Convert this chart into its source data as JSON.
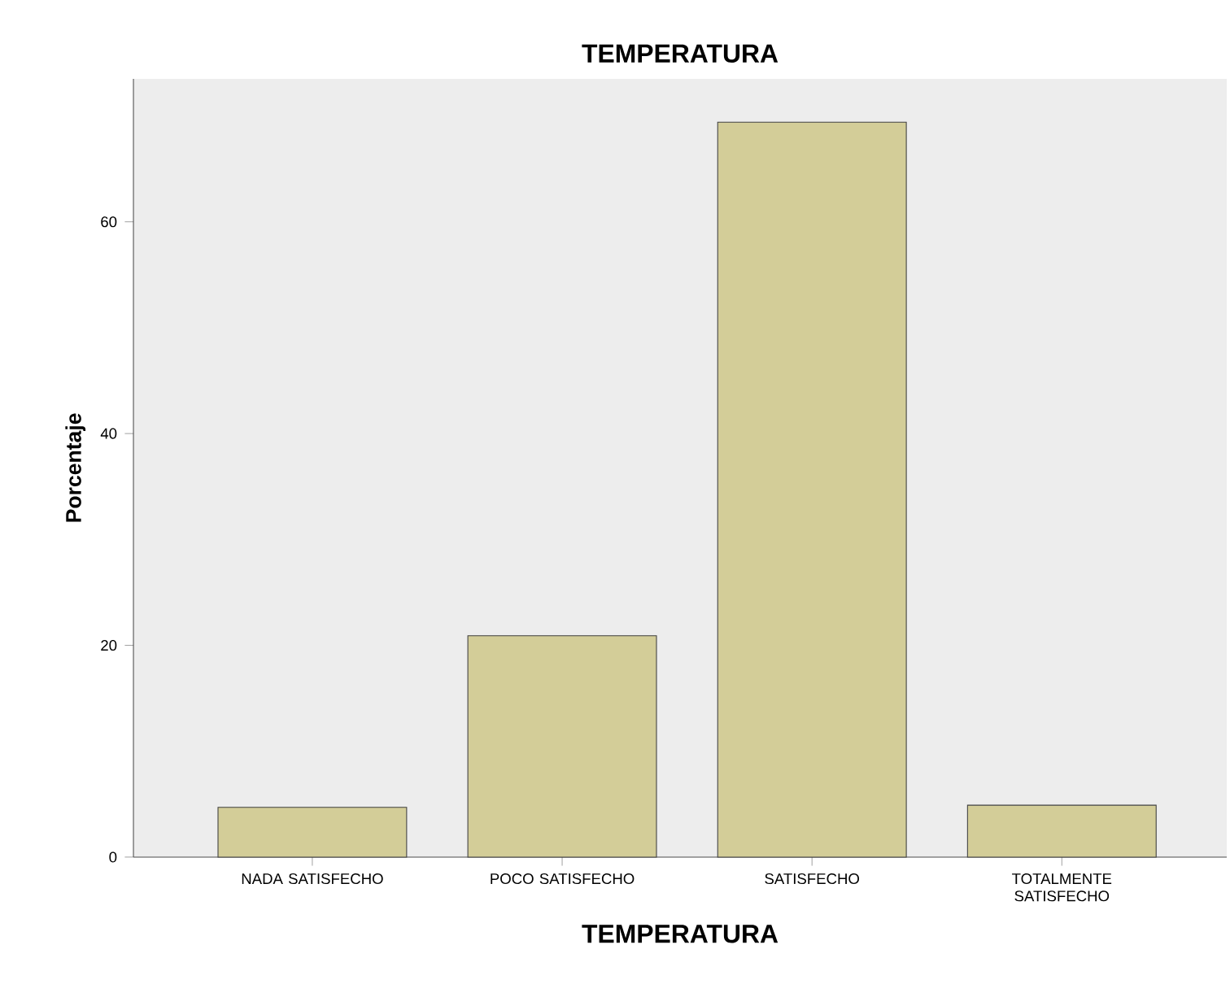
{
  "chart_data": {
    "type": "bar",
    "title": "TEMPERATURA",
    "xlabel": "TEMPERATURA",
    "ylabel": "Porcentaje",
    "categories": [
      "NADA SATISFECHO",
      "POCO SATISFECHO",
      "SATISFECHO",
      "TOTALMENTE SATISFECHO"
    ],
    "values": [
      4.7,
      20.9,
      69.4,
      4.9
    ],
    "color": "#d3cd98",
    "ylim": [
      0,
      73.5
    ],
    "yticks": [
      0,
      20,
      40,
      60
    ],
    "grid": false
  }
}
